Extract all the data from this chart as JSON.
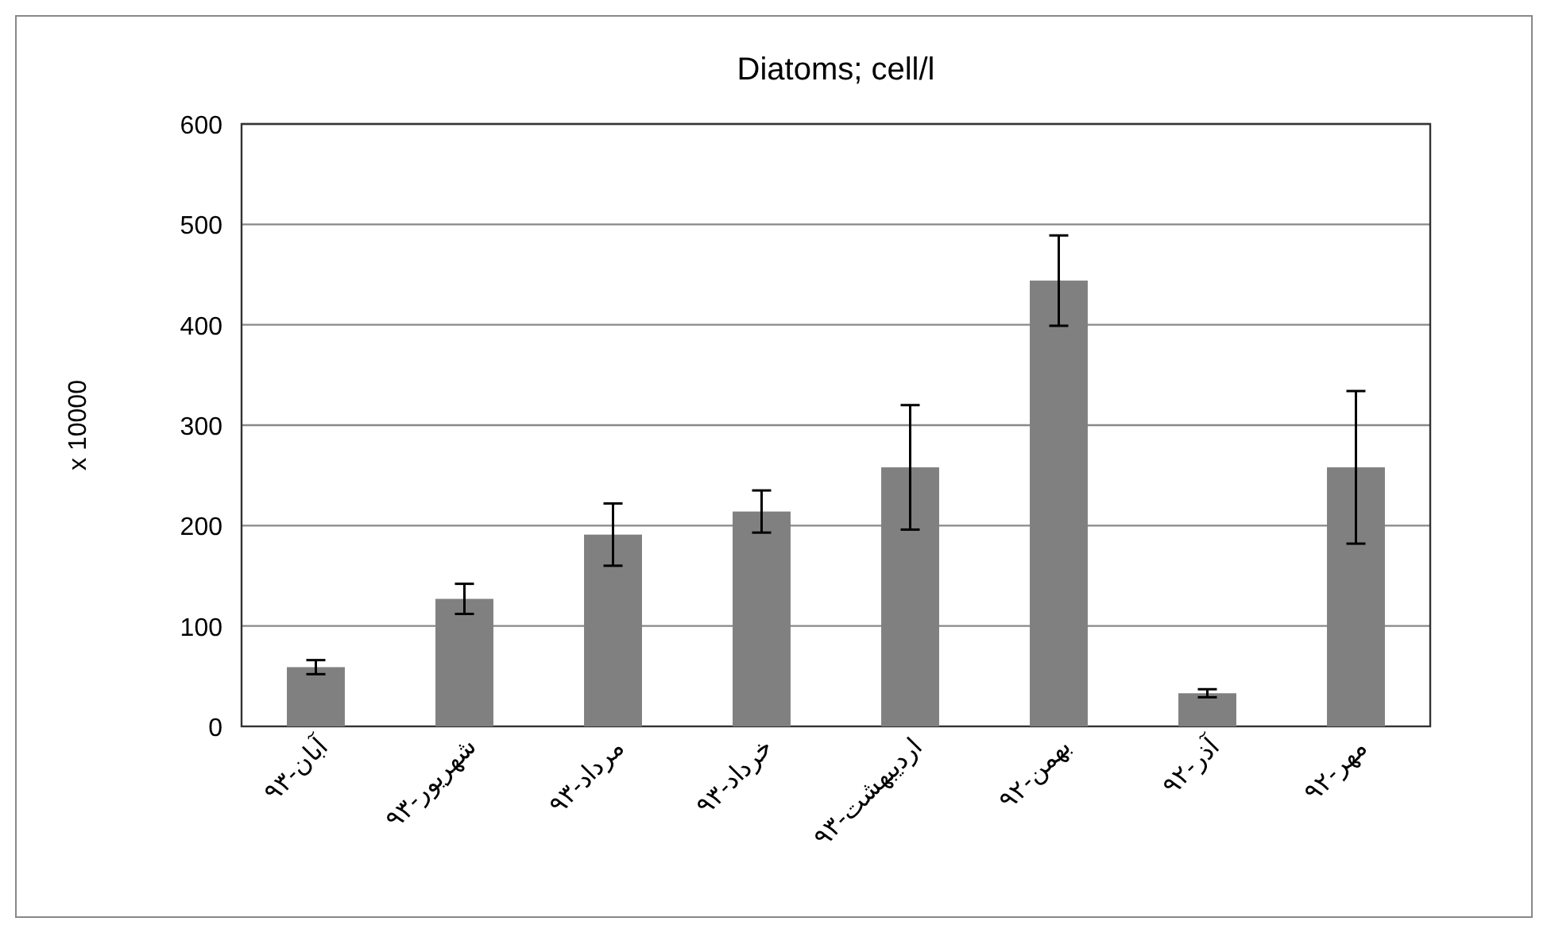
{
  "chart_data": {
    "type": "bar",
    "title": "Diatoms; cell/l",
    "ylabel": "x 10000",
    "categories": [
      "آبان-۹۳",
      "شهریور-۹۳",
      "مرداد-۹۳",
      "خرداد-۹۳",
      "اردیبهشت-۹۳",
      "بهمن-۹۲",
      "آذر-۹۲",
      "مهر-۹۲"
    ],
    "values": [
      59,
      127,
      191,
      214,
      258,
      444,
      33,
      258
    ],
    "errors": [
      7,
      15,
      31,
      21,
      62,
      45,
      4,
      76
    ],
    "color": "#808080",
    "ylim": [
      0,
      600
    ],
    "yticks": [
      0,
      100,
      200,
      300,
      400,
      500,
      600
    ],
    "grid": "y"
  }
}
